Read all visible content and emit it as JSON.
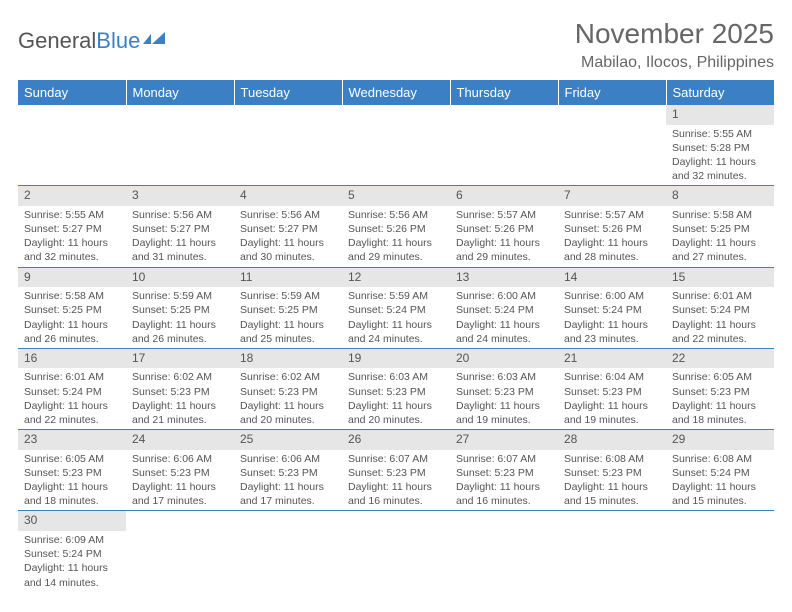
{
  "logo": {
    "text1": "General",
    "text2": "Blue"
  },
  "title": "November 2025",
  "location": "Mabilao, Ilocos, Philippines",
  "colors": {
    "header_bg": "#3b7fc4",
    "header_text": "#ffffff",
    "daynum_bg": "#e6e6e6",
    "body_text": "#555555",
    "border": "#3b7fc4"
  },
  "day_headers": [
    "Sunday",
    "Monday",
    "Tuesday",
    "Wednesday",
    "Thursday",
    "Friday",
    "Saturday"
  ],
  "weeks": [
    [
      {
        "n": "",
        "sr": "",
        "ss": "",
        "dl": ""
      },
      {
        "n": "",
        "sr": "",
        "ss": "",
        "dl": ""
      },
      {
        "n": "",
        "sr": "",
        "ss": "",
        "dl": ""
      },
      {
        "n": "",
        "sr": "",
        "ss": "",
        "dl": ""
      },
      {
        "n": "",
        "sr": "",
        "ss": "",
        "dl": ""
      },
      {
        "n": "",
        "sr": "",
        "ss": "",
        "dl": ""
      },
      {
        "n": "1",
        "sr": "Sunrise: 5:55 AM",
        "ss": "Sunset: 5:28 PM",
        "dl": "Daylight: 11 hours and 32 minutes."
      }
    ],
    [
      {
        "n": "2",
        "sr": "Sunrise: 5:55 AM",
        "ss": "Sunset: 5:27 PM",
        "dl": "Daylight: 11 hours and 32 minutes."
      },
      {
        "n": "3",
        "sr": "Sunrise: 5:56 AM",
        "ss": "Sunset: 5:27 PM",
        "dl": "Daylight: 11 hours and 31 minutes."
      },
      {
        "n": "4",
        "sr": "Sunrise: 5:56 AM",
        "ss": "Sunset: 5:27 PM",
        "dl": "Daylight: 11 hours and 30 minutes."
      },
      {
        "n": "5",
        "sr": "Sunrise: 5:56 AM",
        "ss": "Sunset: 5:26 PM",
        "dl": "Daylight: 11 hours and 29 minutes."
      },
      {
        "n": "6",
        "sr": "Sunrise: 5:57 AM",
        "ss": "Sunset: 5:26 PM",
        "dl": "Daylight: 11 hours and 29 minutes."
      },
      {
        "n": "7",
        "sr": "Sunrise: 5:57 AM",
        "ss": "Sunset: 5:26 PM",
        "dl": "Daylight: 11 hours and 28 minutes."
      },
      {
        "n": "8",
        "sr": "Sunrise: 5:58 AM",
        "ss": "Sunset: 5:25 PM",
        "dl": "Daylight: 11 hours and 27 minutes."
      }
    ],
    [
      {
        "n": "9",
        "sr": "Sunrise: 5:58 AM",
        "ss": "Sunset: 5:25 PM",
        "dl": "Daylight: 11 hours and 26 minutes."
      },
      {
        "n": "10",
        "sr": "Sunrise: 5:59 AM",
        "ss": "Sunset: 5:25 PM",
        "dl": "Daylight: 11 hours and 26 minutes."
      },
      {
        "n": "11",
        "sr": "Sunrise: 5:59 AM",
        "ss": "Sunset: 5:25 PM",
        "dl": "Daylight: 11 hours and 25 minutes."
      },
      {
        "n": "12",
        "sr": "Sunrise: 5:59 AM",
        "ss": "Sunset: 5:24 PM",
        "dl": "Daylight: 11 hours and 24 minutes."
      },
      {
        "n": "13",
        "sr": "Sunrise: 6:00 AM",
        "ss": "Sunset: 5:24 PM",
        "dl": "Daylight: 11 hours and 24 minutes."
      },
      {
        "n": "14",
        "sr": "Sunrise: 6:00 AM",
        "ss": "Sunset: 5:24 PM",
        "dl": "Daylight: 11 hours and 23 minutes."
      },
      {
        "n": "15",
        "sr": "Sunrise: 6:01 AM",
        "ss": "Sunset: 5:24 PM",
        "dl": "Daylight: 11 hours and 22 minutes."
      }
    ],
    [
      {
        "n": "16",
        "sr": "Sunrise: 6:01 AM",
        "ss": "Sunset: 5:24 PM",
        "dl": "Daylight: 11 hours and 22 minutes."
      },
      {
        "n": "17",
        "sr": "Sunrise: 6:02 AM",
        "ss": "Sunset: 5:23 PM",
        "dl": "Daylight: 11 hours and 21 minutes."
      },
      {
        "n": "18",
        "sr": "Sunrise: 6:02 AM",
        "ss": "Sunset: 5:23 PM",
        "dl": "Daylight: 11 hours and 20 minutes."
      },
      {
        "n": "19",
        "sr": "Sunrise: 6:03 AM",
        "ss": "Sunset: 5:23 PM",
        "dl": "Daylight: 11 hours and 20 minutes."
      },
      {
        "n": "20",
        "sr": "Sunrise: 6:03 AM",
        "ss": "Sunset: 5:23 PM",
        "dl": "Daylight: 11 hours and 19 minutes."
      },
      {
        "n": "21",
        "sr": "Sunrise: 6:04 AM",
        "ss": "Sunset: 5:23 PM",
        "dl": "Daylight: 11 hours and 19 minutes."
      },
      {
        "n": "22",
        "sr": "Sunrise: 6:05 AM",
        "ss": "Sunset: 5:23 PM",
        "dl": "Daylight: 11 hours and 18 minutes."
      }
    ],
    [
      {
        "n": "23",
        "sr": "Sunrise: 6:05 AM",
        "ss": "Sunset: 5:23 PM",
        "dl": "Daylight: 11 hours and 18 minutes."
      },
      {
        "n": "24",
        "sr": "Sunrise: 6:06 AM",
        "ss": "Sunset: 5:23 PM",
        "dl": "Daylight: 11 hours and 17 minutes."
      },
      {
        "n": "25",
        "sr": "Sunrise: 6:06 AM",
        "ss": "Sunset: 5:23 PM",
        "dl": "Daylight: 11 hours and 17 minutes."
      },
      {
        "n": "26",
        "sr": "Sunrise: 6:07 AM",
        "ss": "Sunset: 5:23 PM",
        "dl": "Daylight: 11 hours and 16 minutes."
      },
      {
        "n": "27",
        "sr": "Sunrise: 6:07 AM",
        "ss": "Sunset: 5:23 PM",
        "dl": "Daylight: 11 hours and 16 minutes."
      },
      {
        "n": "28",
        "sr": "Sunrise: 6:08 AM",
        "ss": "Sunset: 5:23 PM",
        "dl": "Daylight: 11 hours and 15 minutes."
      },
      {
        "n": "29",
        "sr": "Sunrise: 6:08 AM",
        "ss": "Sunset: 5:24 PM",
        "dl": "Daylight: 11 hours and 15 minutes."
      }
    ],
    [
      {
        "n": "30",
        "sr": "Sunrise: 6:09 AM",
        "ss": "Sunset: 5:24 PM",
        "dl": "Daylight: 11 hours and 14 minutes."
      },
      {
        "n": "",
        "sr": "",
        "ss": "",
        "dl": ""
      },
      {
        "n": "",
        "sr": "",
        "ss": "",
        "dl": ""
      },
      {
        "n": "",
        "sr": "",
        "ss": "",
        "dl": ""
      },
      {
        "n": "",
        "sr": "",
        "ss": "",
        "dl": ""
      },
      {
        "n": "",
        "sr": "",
        "ss": "",
        "dl": ""
      },
      {
        "n": "",
        "sr": "",
        "ss": "",
        "dl": ""
      }
    ]
  ]
}
